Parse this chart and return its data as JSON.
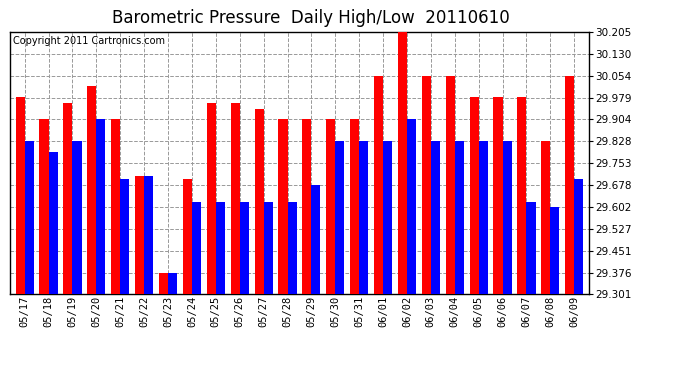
{
  "title": "Barometric Pressure  Daily High/Low  20110610",
  "copyright": "Copyright 2011 Cartronics.com",
  "dates": [
    "05/17",
    "05/18",
    "05/19",
    "05/20",
    "05/21",
    "05/22",
    "05/23",
    "05/24",
    "05/25",
    "05/26",
    "05/27",
    "05/28",
    "05/29",
    "05/30",
    "05/31",
    "06/01",
    "06/02",
    "06/03",
    "06/04",
    "06/05",
    "06/06",
    "06/07",
    "06/08",
    "06/09"
  ],
  "highs": [
    29.979,
    29.904,
    29.96,
    30.02,
    29.904,
    29.71,
    29.376,
    29.7,
    29.96,
    29.96,
    29.94,
    29.904,
    29.904,
    29.904,
    29.904,
    30.054,
    30.205,
    30.054,
    30.054,
    29.979,
    29.979,
    29.979,
    29.828,
    30.054
  ],
  "lows": [
    29.828,
    29.79,
    29.828,
    29.904,
    29.7,
    29.71,
    29.376,
    29.62,
    29.62,
    29.62,
    29.62,
    29.62,
    29.678,
    29.828,
    29.828,
    29.828,
    29.904,
    29.828,
    29.828,
    29.828,
    29.828,
    29.62,
    29.602,
    29.7
  ],
  "high_color": "#ff0000",
  "low_color": "#0000ff",
  "bg_color": "#ffffff",
  "grid_color": "#999999",
  "ymin": 29.301,
  "ymax": 30.205,
  "yticks": [
    29.301,
    29.376,
    29.451,
    29.527,
    29.602,
    29.678,
    29.753,
    29.828,
    29.904,
    29.979,
    30.054,
    30.13,
    30.205
  ],
  "title_fontsize": 12,
  "copyright_fontsize": 7,
  "tick_fontsize": 7.5,
  "bar_width": 0.38
}
